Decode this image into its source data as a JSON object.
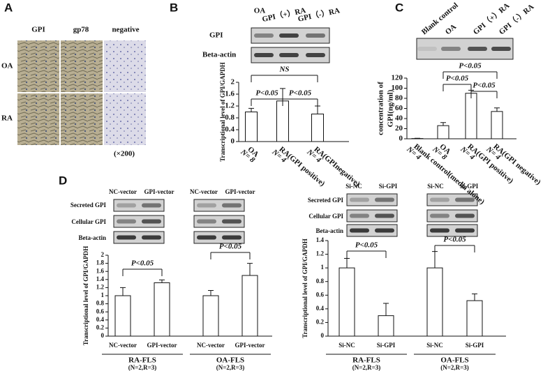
{
  "panel_a": {
    "label": "A",
    "columns": [
      "GPI",
      "gp78",
      "negative"
    ],
    "rows": [
      "OA",
      "RA"
    ],
    "magnification": "(×200)"
  },
  "panel_b": {
    "label": "B",
    "lanes": [
      "OA",
      "GPI（+）RA",
      "GPI（-）RA"
    ],
    "blots": [
      "GPI",
      "Beta-actin"
    ]
  },
  "panel_c": {
    "label": "C",
    "lanes": [
      "Blank control",
      "OA",
      "GPI（+）RA",
      "GPI（-）RA"
    ]
  },
  "panel_d": {
    "label": "D",
    "left_lanes": [
      "NC-vector",
      "GPI-vector"
    ],
    "right_lanes": [
      "Si-NC",
      "Si-GPI"
    ],
    "blots": [
      "Secreted GPI",
      "Cellular GPI",
      "Beta-actin"
    ]
  },
  "chart_data": [
    {
      "type": "bar",
      "y_label": "Transcriptional level of GPI/GAPDH",
      "categories": [
        "OA",
        "RA(GPI positive)",
        "RA(GPInegative)"
      ],
      "values": [
        1.0,
        1.37,
        0.93
      ],
      "errors": [
        0.12,
        0.42,
        0.27
      ],
      "n_labels": [
        "N= 8",
        "N= 4",
        "N= 4"
      ],
      "annotations": [
        "P<0.05",
        "P<0.05",
        "NS"
      ],
      "ylim": [
        0,
        2
      ],
      "yticks": [
        0,
        0.4,
        0.8,
        1.2,
        1.6,
        2
      ],
      "color": "#ffffff"
    },
    {
      "type": "bar",
      "y_label": [
        "concentration of",
        "GPI(ng/ml)"
      ],
      "categories": [
        "Blank control(media alone)",
        "OA",
        "RA(GPI positive)",
        "RA(GPI negative)"
      ],
      "values": [
        0.5,
        26,
        90,
        54
      ],
      "errors": [
        0.5,
        6,
        6,
        7
      ],
      "n_labels": [
        "N= 4",
        "N= 8",
        "N= 4",
        "N= 4"
      ],
      "annotations": [
        "P<0.05",
        "P<0.05",
        "P<0.05"
      ],
      "ylim": [
        0,
        120
      ],
      "yticks": [
        0,
        20,
        40,
        60,
        80,
        100,
        120
      ],
      "color": "#ffffff"
    },
    {
      "type": "bar",
      "y_label": "Transcriptional level of GPI/GAPDH",
      "categories": [
        "NC-vector",
        "GPI-vector",
        "NC-vector",
        "GPI-vector"
      ],
      "values": [
        1.0,
        1.32,
        1.0,
        1.5
      ],
      "errors": [
        0.2,
        0.07,
        0.13,
        0.3
      ],
      "groups": [
        "RA-FLS",
        "OA-FLS"
      ],
      "group_note": "(N=2,R=3)",
      "annotations": [
        "P<0.05",
        "P<0.05"
      ],
      "ylim": [
        0,
        2
      ],
      "yticks": [
        0,
        0.2,
        0.4,
        0.6,
        0.8,
        1,
        1.2,
        1.4,
        1.6,
        1.8,
        2
      ],
      "color": "#ffffff"
    },
    {
      "type": "bar",
      "y_label": "Transcriptional level of GPI/GAPDH",
      "categories": [
        "Si-NC",
        "Si-GPI",
        "Si-NC",
        "Si-GPI"
      ],
      "values": [
        1.0,
        0.3,
        1.0,
        0.52
      ],
      "errors": [
        0.14,
        0.18,
        0.24,
        0.1
      ],
      "groups": [
        "RA-FLS",
        "OA-FLS"
      ],
      "group_note": "(N=2,R=3)",
      "annotations": [
        "P<0.05",
        "P<0.05"
      ],
      "ylim": [
        0,
        1.4
      ],
      "yticks": [
        0,
        0.2,
        0.4,
        0.6,
        0.8,
        1,
        1.2,
        1.4
      ],
      "color": "#ffffff"
    }
  ]
}
